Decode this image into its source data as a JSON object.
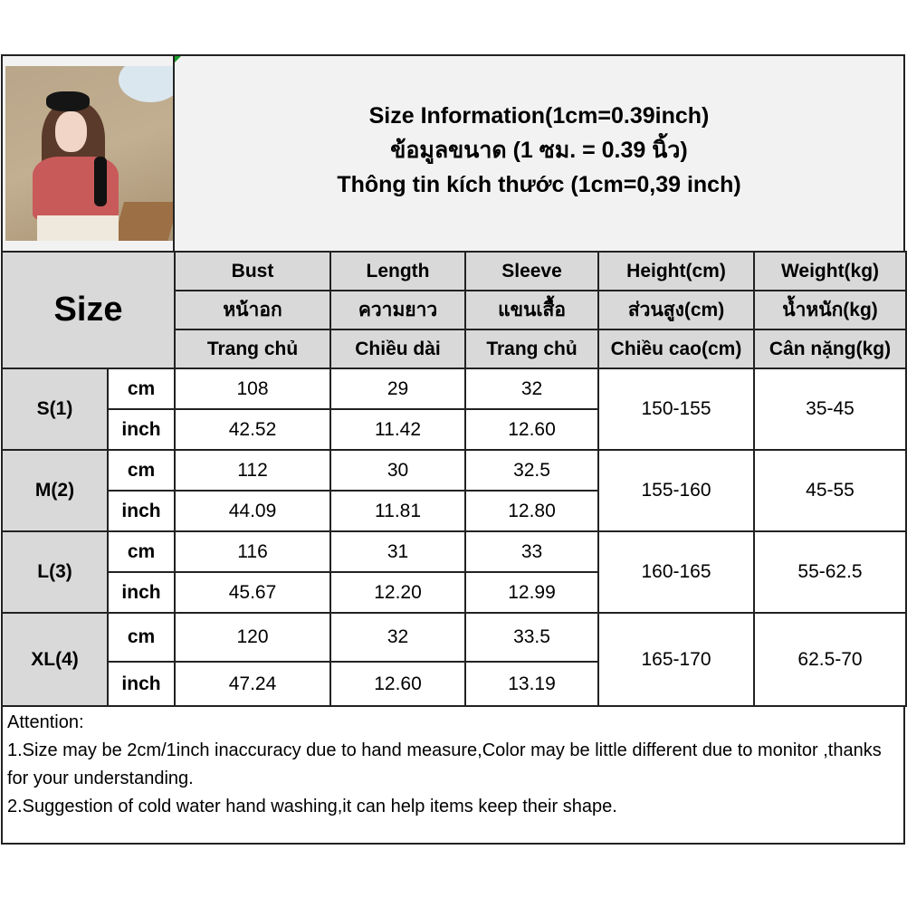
{
  "title": {
    "line1": "Size Information(1cm=0.39inch)",
    "line2": "ข้อมูลขนาด (1 ซม. = 0.39 นิ้ว)",
    "line3": "Thông tin kích thước (1cm=0,39 inch)"
  },
  "size_header": "Size",
  "columns": [
    {
      "en": "Bust",
      "th": "หน้าอก",
      "vi": "Trang chủ"
    },
    {
      "en": "Length",
      "th": "ความยาว",
      "vi": "Chiều dài"
    },
    {
      "en": "Sleeve",
      "th": "แขนเสื้อ",
      "vi": "Trang chủ"
    },
    {
      "en": "Height(cm)",
      "th": "ส่วนสูง(cm)",
      "vi": "Chiều cao(cm)"
    },
    {
      "en": "Weight(kg)",
      "th": "น้ำหนัก(kg)",
      "vi": "Cân nặng(kg)"
    }
  ],
  "units": {
    "cm": "cm",
    "inch": "inch"
  },
  "rows": [
    {
      "size": "S(1)",
      "cm": [
        "108",
        "29",
        "32"
      ],
      "inch": [
        "42.52",
        "11.42",
        "12.60"
      ],
      "height": "150-155",
      "weight": "35-45"
    },
    {
      "size": "M(2)",
      "cm": [
        "112",
        "30",
        "32.5"
      ],
      "inch": [
        "44.09",
        "11.81",
        "12.80"
      ],
      "height": "155-160",
      "weight": "45-55"
    },
    {
      "size": "L(3)",
      "cm": [
        "116",
        "31",
        "33"
      ],
      "inch": [
        "45.67",
        "12.20",
        "12.99"
      ],
      "height": "160-165",
      "weight": "55-62.5"
    },
    {
      "size": "XL(4)",
      "cm": [
        "120",
        "32",
        "33.5"
      ],
      "inch": [
        "47.24",
        "12.60",
        "13.19"
      ],
      "height": "165-170",
      "weight": "62.5-70"
    }
  ],
  "attention": {
    "heading": "Attention:",
    "line1": "1.Size may be 2cm/1inch inaccuracy due to hand measure,Color may be little different due to monitor ,thanks for your understanding.",
    "line2": "2.Suggestion of cold water hand washing,it can help items keep their shape."
  },
  "colors": {
    "header_bg": "#d9d9d9",
    "title_bg": "#f2f2f2",
    "border": "#222222"
  }
}
